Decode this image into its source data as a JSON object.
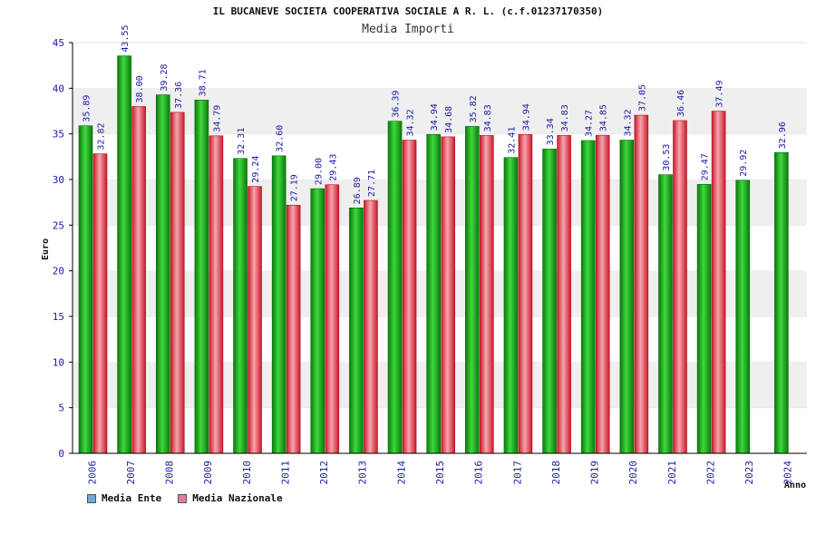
{
  "header": {
    "title": "IL BUCANEVE SOCIETA COOPERATIVA SOCIALE A R. L. (c.f.01237170350)",
    "subtitle": "Media Importi"
  },
  "legend": {
    "ente_label": "Media Ente",
    "nazionale_label": "Media Nazionale",
    "ente_color": "#6fa8dc",
    "nazionale_color": "#e07ca8"
  },
  "colors": {
    "ente_bar": "#1db81d",
    "ente_bar_dark": "#0a7a0a",
    "nazionale_bar": "#e83a4a",
    "nazionale_bar_light": "#f6a5ad",
    "band": "#efefef",
    "axis": "#000000",
    "label": "#1a1aa6"
  },
  "chart_data": {
    "type": "bar",
    "title": "IL BUCANEVE SOCIETA COOPERATIVA SOCIALE A R. L. (c.f.01237170350)",
    "subtitle": "Media Importi",
    "xlabel": "Anno",
    "ylabel": "Euro",
    "ylim": [
      0,
      45
    ],
    "yticks": [
      0,
      5,
      10,
      15,
      20,
      25,
      30,
      35,
      40,
      45
    ],
    "categories": [
      "2006",
      "2007",
      "2008",
      "2009",
      "2010",
      "2011",
      "2012",
      "2013",
      "2014",
      "2015",
      "2016",
      "2017",
      "2018",
      "2019",
      "2020",
      "2021",
      "2022",
      "2023",
      "2024"
    ],
    "series": [
      {
        "name": "Media Ente",
        "values": [
          35.89,
          43.55,
          39.28,
          38.71,
          32.31,
          32.6,
          29.0,
          26.89,
          36.39,
          34.94,
          35.82,
          32.41,
          33.34,
          34.27,
          34.32,
          30.53,
          29.47,
          29.92,
          32.96
        ],
        "labels": [
          "35.89",
          "43.55",
          "39.28",
          "38.71",
          "32.31",
          "32.60",
          "29.00",
          "26.89",
          "36.39",
          "34.94",
          "35.82",
          "32.41",
          "33.34",
          "34.27",
          "34.32",
          "30.53",
          "29.47",
          "29.92",
          "32.96"
        ]
      },
      {
        "name": "Media Nazionale",
        "values": [
          32.82,
          38.0,
          37.36,
          34.79,
          29.24,
          27.19,
          29.43,
          27.71,
          34.32,
          34.68,
          34.83,
          34.94,
          34.83,
          34.85,
          37.05,
          36.46,
          37.49,
          null,
          null
        ],
        "labels": [
          "32.82",
          "38.00",
          "37.36",
          "34.79",
          "29.24",
          "27.19",
          "29.43",
          "27.71",
          "34.32",
          "34.68",
          "34.83",
          "34.94",
          "34.83",
          "34.85",
          "37.05",
          "36.46",
          "37.49",
          null,
          null
        ]
      }
    ],
    "grid": "alternating horizontal bands",
    "legend_position": "bottom-left"
  }
}
